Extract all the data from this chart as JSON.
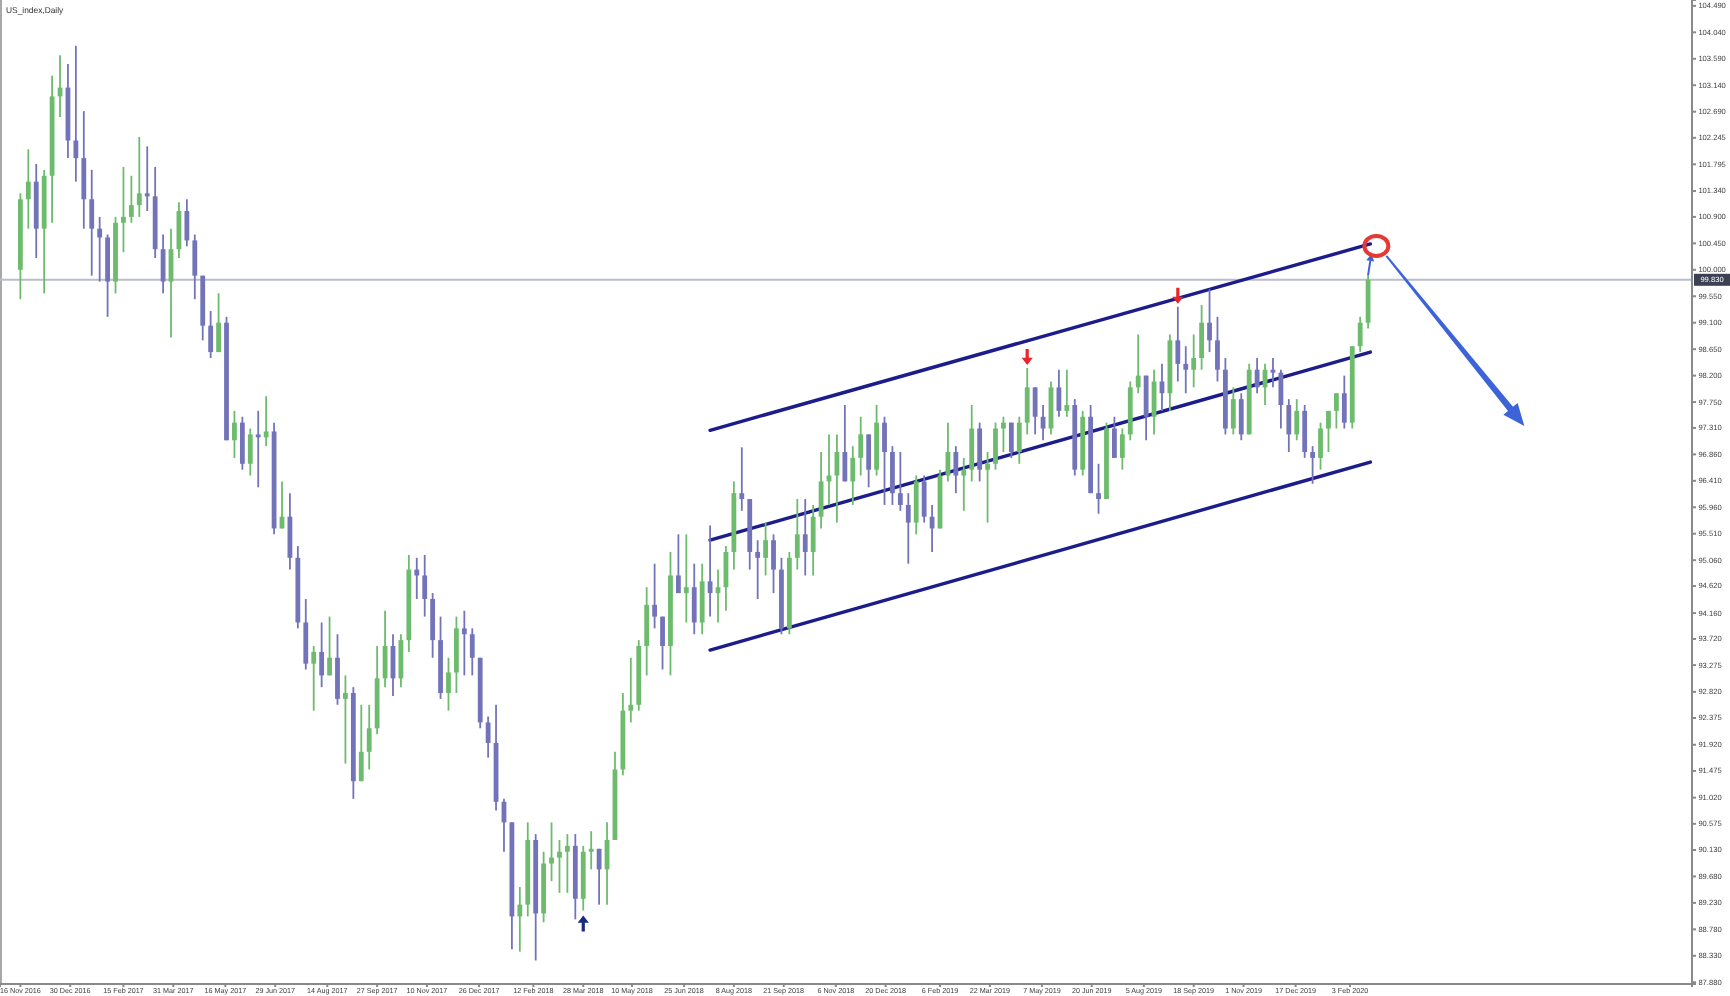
{
  "chart_data": {
    "type": "candlestick",
    "title": "US_index,Daily",
    "x": [
      "2016-11-16",
      "2016-11-23",
      "2016-11-30",
      "2016-12-07",
      "2016-12-14",
      "2016-12-21",
      "2016-12-28",
      "2017-01-04",
      "2017-01-11",
      "2017-01-18",
      "2017-01-25",
      "2017-02-01",
      "2017-02-08",
      "2017-02-15",
      "2017-02-22",
      "2017-03-01",
      "2017-03-08",
      "2017-03-15",
      "2017-03-22",
      "2017-03-29",
      "2017-04-05",
      "2017-04-12",
      "2017-04-19",
      "2017-04-26",
      "2017-05-03",
      "2017-05-10",
      "2017-05-17",
      "2017-05-24",
      "2017-05-31",
      "2017-06-07",
      "2017-06-14",
      "2017-06-21",
      "2017-06-28",
      "2017-07-05",
      "2017-07-12",
      "2017-07-19",
      "2017-07-26",
      "2017-08-02",
      "2017-08-09",
      "2017-08-16",
      "2017-08-23",
      "2017-08-30",
      "2017-09-06",
      "2017-09-13",
      "2017-09-20",
      "2017-09-27",
      "2017-10-04",
      "2017-10-11",
      "2017-10-18",
      "2017-10-25",
      "2017-11-01",
      "2017-11-08",
      "2017-11-15",
      "2017-11-22",
      "2017-11-29",
      "2017-12-06",
      "2017-12-13",
      "2017-12-20",
      "2017-12-27",
      "2018-01-03",
      "2018-01-10",
      "2018-01-17",
      "2018-01-24",
      "2018-01-31",
      "2018-02-07",
      "2018-02-14",
      "2018-02-21",
      "2018-02-28",
      "2018-03-07",
      "2018-03-14",
      "2018-03-21",
      "2018-03-28",
      "2018-04-04",
      "2018-04-11",
      "2018-04-18",
      "2018-04-25",
      "2018-05-02",
      "2018-05-09",
      "2018-05-16",
      "2018-05-23",
      "2018-05-30",
      "2018-06-06",
      "2018-06-13",
      "2018-06-20",
      "2018-06-27",
      "2018-07-04",
      "2018-07-11",
      "2018-07-18",
      "2018-07-25",
      "2018-08-01",
      "2018-08-08",
      "2018-08-15",
      "2018-08-22",
      "2018-08-29",
      "2018-09-05",
      "2018-09-12",
      "2018-09-19",
      "2018-09-26",
      "2018-10-03",
      "2018-10-10",
      "2018-10-17",
      "2018-10-24",
      "2018-10-31",
      "2018-11-07",
      "2018-11-14",
      "2018-11-21",
      "2018-11-28",
      "2018-12-05",
      "2018-12-12",
      "2018-12-19",
      "2018-12-26",
      "2019-01-02",
      "2019-01-09",
      "2019-01-16",
      "2019-01-23",
      "2019-01-30",
      "2019-02-06",
      "2019-02-13",
      "2019-02-20",
      "2019-02-27",
      "2019-03-06",
      "2019-03-13",
      "2019-03-20",
      "2019-03-27",
      "2019-04-03",
      "2019-04-10",
      "2019-04-17",
      "2019-04-24",
      "2019-05-01",
      "2019-05-08",
      "2019-05-15",
      "2019-05-22",
      "2019-05-29",
      "2019-06-05",
      "2019-06-12",
      "2019-06-19",
      "2019-06-26",
      "2019-07-03",
      "2019-07-10",
      "2019-07-17",
      "2019-07-24",
      "2019-07-31",
      "2019-08-07",
      "2019-08-14",
      "2019-08-21",
      "2019-08-28",
      "2019-09-04",
      "2019-09-11",
      "2019-09-18",
      "2019-09-25",
      "2019-10-02",
      "2019-10-09",
      "2019-10-16",
      "2019-10-23",
      "2019-10-30",
      "2019-11-06",
      "2019-11-13",
      "2019-11-20",
      "2019-11-27",
      "2019-12-04",
      "2019-12-11",
      "2019-12-18",
      "2019-12-25",
      "2020-01-01",
      "2020-01-08",
      "2020-01-15",
      "2020-01-22",
      "2020-01-29",
      "2020-02-05",
      "2020-02-12",
      "2020-02-19"
    ],
    "ohlc": [
      [
        100.0,
        101.3,
        99.5,
        101.2
      ],
      [
        101.2,
        102.05,
        100.7,
        101.5
      ],
      [
        101.5,
        101.8,
        100.2,
        100.7
      ],
      [
        100.7,
        101.7,
        99.6,
        101.6
      ],
      [
        101.6,
        103.3,
        100.8,
        102.95
      ],
      [
        102.95,
        103.65,
        102.6,
        103.1
      ],
      [
        103.1,
        103.5,
        101.9,
        102.2
      ],
      [
        102.2,
        103.81,
        101.5,
        101.9
      ],
      [
        101.9,
        102.7,
        100.7,
        101.2
      ],
      [
        101.2,
        101.7,
        99.9,
        100.7
      ],
      [
        100.7,
        100.9,
        99.8,
        100.55
      ],
      [
        100.55,
        100.6,
        99.2,
        99.8
      ],
      [
        99.8,
        100.9,
        99.6,
        100.8
      ],
      [
        100.8,
        101.75,
        100.3,
        100.9
      ],
      [
        100.9,
        101.6,
        100.8,
        101.1
      ],
      [
        101.1,
        102.26,
        100.9,
        101.3
      ],
      [
        101.3,
        102.1,
        101.0,
        101.25
      ],
      [
        101.25,
        101.75,
        100.2,
        100.35
      ],
      [
        100.35,
        100.6,
        99.6,
        99.8
      ],
      [
        99.8,
        100.7,
        98.85,
        100.35
      ],
      [
        100.35,
        101.15,
        100.2,
        101.0
      ],
      [
        101.0,
        101.2,
        100.4,
        100.5
      ],
      [
        100.5,
        100.6,
        99.5,
        99.9
      ],
      [
        99.9,
        99.9,
        98.8,
        99.05
      ],
      [
        99.05,
        99.3,
        98.5,
        98.6
      ],
      [
        98.6,
        99.6,
        98.6,
        99.1
      ],
      [
        99.1,
        99.2,
        97.1,
        97.1
      ],
      [
        97.1,
        97.6,
        96.8,
        97.4
      ],
      [
        97.4,
        97.5,
        96.6,
        96.7
      ],
      [
        96.7,
        97.3,
        96.5,
        97.2
      ],
      [
        97.2,
        97.6,
        96.3,
        97.15
      ],
      [
        97.15,
        97.85,
        97.0,
        97.25
      ],
      [
        97.25,
        97.4,
        95.5,
        95.6
      ],
      [
        95.6,
        96.4,
        95.6,
        95.8
      ],
      [
        95.8,
        96.2,
        94.9,
        95.1
      ],
      [
        95.1,
        95.3,
        93.9,
        94.0
      ],
      [
        94.0,
        94.4,
        93.2,
        93.3
      ],
      [
        93.3,
        93.6,
        92.5,
        93.5
      ],
      [
        93.5,
        94.0,
        92.9,
        93.1
      ],
      [
        93.1,
        94.1,
        93.1,
        93.4
      ],
      [
        93.4,
        93.8,
        92.6,
        92.7
      ],
      [
        92.7,
        93.1,
        91.6,
        92.8
      ],
      [
        92.8,
        92.9,
        91.0,
        91.3
      ],
      [
        91.3,
        92.6,
        91.3,
        91.8
      ],
      [
        91.8,
        92.6,
        91.5,
        92.2
      ],
      [
        92.2,
        93.6,
        92.1,
        93.05
      ],
      [
        93.05,
        94.2,
        92.9,
        93.6
      ],
      [
        93.6,
        93.8,
        92.75,
        93.05
      ],
      [
        93.05,
        93.8,
        92.9,
        93.7
      ],
      [
        93.7,
        95.15,
        93.5,
        94.9
      ],
      [
        94.9,
        95.1,
        94.4,
        94.8
      ],
      [
        94.8,
        95.15,
        94.1,
        94.4
      ],
      [
        94.4,
        94.5,
        93.4,
        93.7
      ],
      [
        93.7,
        94.1,
        92.7,
        92.8
      ],
      [
        92.8,
        93.4,
        92.5,
        93.15
      ],
      [
        93.15,
        94.1,
        92.8,
        93.9
      ],
      [
        93.9,
        94.2,
        93.1,
        93.8
      ],
      [
        93.8,
        93.9,
        93.1,
        93.4
      ],
      [
        93.4,
        93.4,
        92.2,
        92.3
      ],
      [
        92.3,
        92.4,
        91.7,
        91.95
      ],
      [
        91.95,
        92.6,
        90.8,
        90.95
      ],
      [
        90.95,
        91.0,
        90.1,
        90.6
      ],
      [
        90.6,
        90.6,
        88.44,
        89.0
      ],
      [
        89.0,
        89.5,
        88.4,
        89.2
      ],
      [
        89.2,
        90.6,
        89.0,
        90.3
      ],
      [
        90.3,
        90.4,
        88.25,
        89.05
      ],
      [
        89.05,
        90.1,
        88.9,
        89.9
      ],
      [
        89.9,
        90.6,
        89.6,
        90.0
      ],
      [
        90.0,
        90.3,
        89.4,
        90.1
      ],
      [
        90.1,
        90.4,
        89.4,
        90.2
      ],
      [
        90.2,
        90.4,
        88.95,
        89.3
      ],
      [
        89.3,
        90.2,
        89.1,
        90.1
      ],
      [
        90.1,
        90.45,
        89.8,
        90.15
      ],
      [
        90.15,
        90.15,
        89.2,
        89.8
      ],
      [
        89.8,
        90.6,
        89.2,
        90.3
      ],
      [
        90.3,
        91.8,
        90.3,
        91.5
      ],
      [
        91.5,
        92.8,
        91.4,
        92.5
      ],
      [
        92.5,
        93.4,
        92.3,
        92.6
      ],
      [
        92.6,
        93.7,
        92.5,
        93.6
      ],
      [
        93.6,
        94.6,
        93.1,
        94.3
      ],
      [
        94.3,
        95.0,
        93.9,
        94.1
      ],
      [
        94.1,
        94.1,
        93.2,
        93.6
      ],
      [
        93.6,
        95.2,
        93.1,
        94.8
      ],
      [
        94.8,
        95.5,
        94.5,
        94.5
      ],
      [
        94.5,
        95.5,
        94.0,
        94.6
      ],
      [
        94.6,
        95.0,
        93.8,
        94.0
      ],
      [
        94.0,
        95.0,
        93.8,
        94.7
      ],
      [
        94.7,
        95.65,
        94.1,
        94.5
      ],
      [
        94.5,
        94.9,
        94.0,
        94.6
      ],
      [
        94.6,
        95.3,
        94.2,
        95.2
      ],
      [
        95.2,
        96.4,
        94.9,
        96.2
      ],
      [
        96.2,
        96.98,
        95.9,
        96.1
      ],
      [
        96.1,
        96.1,
        94.9,
        95.2
      ],
      [
        95.2,
        95.4,
        94.4,
        95.1
      ],
      [
        95.1,
        95.7,
        94.8,
        95.4
      ],
      [
        95.4,
        95.5,
        94.5,
        94.9
      ],
      [
        94.9,
        95.1,
        93.8,
        93.9
      ],
      [
        93.9,
        95.2,
        93.8,
        95.1
      ],
      [
        95.1,
        96.1,
        94.9,
        95.5
      ],
      [
        95.5,
        96.1,
        94.8,
        95.2
      ],
      [
        95.2,
        96.0,
        94.8,
        95.8
      ],
      [
        95.8,
        96.9,
        95.6,
        96.4
      ],
      [
        96.4,
        97.2,
        96.0,
        96.5
      ],
      [
        96.5,
        97.2,
        95.7,
        96.9
      ],
      [
        96.9,
        97.7,
        96.4,
        96.4
      ],
      [
        96.4,
        97.0,
        96.0,
        96.8
      ],
      [
        96.8,
        97.5,
        96.5,
        97.2
      ],
      [
        97.2,
        97.2,
        96.3,
        96.6
      ],
      [
        96.6,
        97.7,
        96.5,
        97.4
      ],
      [
        97.4,
        97.5,
        96.0,
        96.9
      ],
      [
        96.9,
        97.0,
        96.0,
        96.2
      ],
      [
        96.2,
        96.9,
        95.9,
        96.0
      ],
      [
        96.0,
        96.2,
        95.0,
        95.7
      ],
      [
        95.7,
        96.5,
        95.5,
        96.4
      ],
      [
        96.4,
        96.5,
        95.7,
        95.8
      ],
      [
        95.8,
        96.0,
        95.2,
        95.6
      ],
      [
        95.6,
        96.6,
        95.6,
        96.5
      ],
      [
        96.5,
        97.4,
        96.4,
        96.9
      ],
      [
        96.9,
        97.0,
        96.2,
        96.5
      ],
      [
        96.5,
        96.8,
        95.9,
        96.6
      ],
      [
        96.6,
        97.7,
        96.4,
        97.3
      ],
      [
        97.3,
        97.4,
        96.4,
        96.6
      ],
      [
        96.6,
        96.9,
        95.7,
        96.7
      ],
      [
        96.7,
        97.4,
        96.6,
        97.3
      ],
      [
        97.3,
        97.5,
        96.9,
        97.4
      ],
      [
        97.4,
        97.4,
        96.8,
        96.9
      ],
      [
        96.9,
        97.5,
        96.7,
        97.4
      ],
      [
        97.4,
        98.33,
        97.2,
        98.0
      ],
      [
        98.0,
        98.0,
        97.2,
        97.5
      ],
      [
        97.5,
        97.7,
        97.1,
        97.3
      ],
      [
        97.3,
        98.1,
        97.2,
        98.0
      ],
      [
        98.0,
        98.3,
        97.5,
        97.6
      ],
      [
        97.6,
        98.3,
        97.5,
        97.7
      ],
      [
        97.7,
        97.8,
        96.5,
        96.6
      ],
      [
        96.6,
        97.6,
        96.5,
        97.5
      ],
      [
        97.5,
        97.7,
        96.2,
        96.2
      ],
      [
        96.2,
        96.7,
        95.85,
        96.1
      ],
      [
        96.1,
        97.4,
        96.1,
        97.3
      ],
      [
        97.3,
        97.5,
        96.8,
        96.8
      ],
      [
        96.8,
        97.3,
        96.6,
        97.2
      ],
      [
        97.2,
        98.1,
        97.1,
        98.0
      ],
      [
        98.0,
        98.9,
        97.9,
        98.2
      ],
      [
        98.2,
        98.2,
        97.1,
        97.5
      ],
      [
        97.5,
        98.3,
        97.2,
        98.1
      ],
      [
        98.1,
        98.4,
        97.6,
        97.9
      ],
      [
        97.9,
        98.9,
        97.6,
        98.8
      ],
      [
        98.8,
        99.37,
        98.1,
        98.4
      ],
      [
        98.4,
        98.7,
        97.9,
        98.3
      ],
      [
        98.3,
        98.9,
        98.0,
        98.5
      ],
      [
        98.5,
        99.4,
        98.3,
        99.1
      ],
      [
        99.1,
        99.67,
        98.6,
        98.8
      ],
      [
        98.8,
        99.2,
        98.1,
        98.3
      ],
      [
        98.3,
        98.5,
        97.2,
        97.3
      ],
      [
        97.3,
        98.0,
        97.2,
        97.8
      ],
      [
        97.8,
        97.9,
        97.1,
        97.2
      ],
      [
        97.2,
        98.4,
        97.2,
        98.3
      ],
      [
        98.3,
        98.5,
        97.9,
        98.0
      ],
      [
        98.0,
        98.4,
        97.7,
        98.3
      ],
      [
        98.3,
        98.5,
        98.0,
        98.25
      ],
      [
        98.25,
        98.3,
        97.3,
        97.7
      ],
      [
        97.7,
        97.8,
        96.9,
        97.2
      ],
      [
        97.2,
        97.8,
        97.1,
        97.6
      ],
      [
        97.6,
        97.7,
        96.8,
        96.9
      ],
      [
        96.9,
        97.0,
        96.36,
        96.8
      ],
      [
        96.8,
        97.4,
        96.6,
        97.3
      ],
      [
        97.3,
        97.6,
        96.9,
        97.6
      ],
      [
        97.6,
        97.9,
        97.3,
        97.9
      ],
      [
        97.9,
        98.2,
        97.3,
        97.4
      ],
      [
        97.4,
        98.7,
        97.3,
        98.7
      ],
      [
        98.7,
        99.2,
        98.6,
        99.1
      ],
      [
        99.1,
        99.91,
        99.0,
        99.83
      ]
    ],
    "colors": [
      "#6dbb6d",
      "#6dbb6d",
      "#7373b9",
      "#6dbb6d",
      "#6dbb6d",
      "#6dbb6d",
      "#7373b9",
      "#7373b9",
      "#7373b9",
      "#7373b9",
      "#7373b9",
      "#7373b9",
      "#6dbb6d",
      "#6dbb6d",
      "#6dbb6d",
      "#6dbb6d",
      "#7373b9",
      "#7373b9",
      "#7373b9",
      "#6dbb6d",
      "#6dbb6d",
      "#7373b9",
      "#7373b9",
      "#7373b9",
      "#7373b9",
      "#6dbb6d",
      "#7373b9",
      "#6dbb6d",
      "#7373b9",
      "#6dbb6d",
      "#7373b9",
      "#6dbb6d",
      "#7373b9",
      "#6dbb6d",
      "#7373b9",
      "#7373b9",
      "#7373b9",
      "#6dbb6d",
      "#7373b9",
      "#6dbb6d",
      "#7373b9",
      "#6dbb6d",
      "#7373b9",
      "#6dbb6d",
      "#6dbb6d",
      "#6dbb6d",
      "#6dbb6d",
      "#7373b9",
      "#6dbb6d",
      "#6dbb6d",
      "#7373b9",
      "#7373b9",
      "#7373b9",
      "#7373b9",
      "#6dbb6d",
      "#6dbb6d",
      "#7373b9",
      "#7373b9",
      "#7373b9",
      "#7373b9",
      "#7373b9",
      "#7373b9",
      "#7373b9",
      "#6dbb6d",
      "#6dbb6d",
      "#7373b9",
      "#6dbb6d",
      "#6dbb6d",
      "#6dbb6d",
      "#6dbb6d",
      "#7373b9",
      "#6dbb6d",
      "#6dbb6d",
      "#7373b9",
      "#6dbb6d",
      "#6dbb6d",
      "#6dbb6d",
      "#6dbb6d",
      "#6dbb6d",
      "#6dbb6d",
      "#7373b9",
      "#7373b9",
      "#6dbb6d",
      "#7373b9",
      "#6dbb6d",
      "#7373b9",
      "#6dbb6d",
      "#7373b9",
      "#6dbb6d",
      "#6dbb6d",
      "#6dbb6d",
      "#7373b9",
      "#7373b9",
      "#7373b9",
      "#6dbb6d",
      "#7373b9",
      "#7373b9",
      "#6dbb6d",
      "#6dbb6d",
      "#7373b9",
      "#6dbb6d",
      "#6dbb6d",
      "#6dbb6d",
      "#6dbb6d",
      "#7373b9",
      "#6dbb6d",
      "#6dbb6d",
      "#7373b9",
      "#6dbb6d",
      "#7373b9",
      "#7373b9",
      "#7373b9",
      "#7373b9",
      "#6dbb6d",
      "#7373b9",
      "#7373b9",
      "#6dbb6d",
      "#6dbb6d",
      "#7373b9",
      "#6dbb6d",
      "#6dbb6d",
      "#7373b9",
      "#6dbb6d",
      "#6dbb6d",
      "#6dbb6d",
      "#7373b9",
      "#6dbb6d",
      "#6dbb6d",
      "#7373b9",
      "#7373b9",
      "#6dbb6d",
      "#7373b9",
      "#6dbb6d",
      "#7373b9",
      "#6dbb6d",
      "#7373b9",
      "#7373b9",
      "#6dbb6d",
      "#7373b9",
      "#6dbb6d",
      "#6dbb6d",
      "#6dbb6d",
      "#7373b9",
      "#6dbb6d",
      "#7373b9",
      "#6dbb6d",
      "#7373b9",
      "#7373b9",
      "#6dbb6d",
      "#6dbb6d",
      "#7373b9",
      "#7373b9",
      "#7373b9",
      "#6dbb6d",
      "#7373b9",
      "#6dbb6d",
      "#7373b9",
      "#6dbb6d",
      "#7373b9",
      "#7373b9",
      "#7373b9",
      "#6dbb6d",
      "#7373b9",
      "#7373b9",
      "#6dbb6d",
      "#6dbb6d",
      "#6dbb6d",
      "#7373b9",
      "#6dbb6d",
      "#6dbb6d",
      "#6dbb6d"
    ],
    "series": [
      {
        "type": "line",
        "color": "#1c1c8a",
        "x": [
          "2018-07-18",
          "2020-02-21"
        ],
        "values": [
          97.27,
          100.44
        ]
      },
      {
        "type": "line",
        "color": "#1c1c8a",
        "x": [
          "2018-07-18",
          "2020-02-21"
        ],
        "values": [
          95.4,
          98.6
        ]
      },
      {
        "type": "line",
        "color": "#1c1c8a",
        "x": [
          "2018-07-18",
          "2020-02-21"
        ],
        "values": [
          93.53,
          96.73
        ]
      }
    ],
    "ref_lines": [
      {
        "axis": "y",
        "value": 99.83,
        "label": "99.830",
        "color": "#b9bdcc"
      }
    ],
    "xlim": [
      "2016-10-29",
      "2020-12-01"
    ],
    "ylim": [
      87.85,
      104.59
    ],
    "xticks": [
      {
        "value": "2016-11-16",
        "label": "16 Nov 2016"
      },
      {
        "value": "2016-12-30",
        "label": "30 Dec 2016"
      },
      {
        "value": "2017-02-15",
        "label": "15 Feb 2017"
      },
      {
        "value": "2017-03-31",
        "label": "31 Mar 2017"
      },
      {
        "value": "2017-05-16",
        "label": "16 May 2017"
      },
      {
        "value": "2017-06-29",
        "label": "29 Jun 2017"
      },
      {
        "value": "2017-08-14",
        "label": "14 Aug 2017"
      },
      {
        "value": "2017-09-27",
        "label": "27 Sep 2017"
      },
      {
        "value": "2017-11-10",
        "label": "10 Nov 2017"
      },
      {
        "value": "2017-12-26",
        "label": "26 Dec 2017"
      },
      {
        "value": "2018-02-12",
        "label": "12 Feb 2018"
      },
      {
        "value": "2018-03-28",
        "label": "28 Mar 2018"
      },
      {
        "value": "2018-05-10",
        "label": "10 May 2018"
      },
      {
        "value": "2018-06-25",
        "label": "25 Jun 2018"
      },
      {
        "value": "2018-08-08",
        "label": "8 Aug 2018"
      },
      {
        "value": "2018-09-21",
        "label": "21 Sep 2018"
      },
      {
        "value": "2018-11-06",
        "label": "6 Nov 2018"
      },
      {
        "value": "2018-12-20",
        "label": "20 Dec 2018"
      },
      {
        "value": "2019-02-06",
        "label": "6 Feb 2019"
      },
      {
        "value": "2019-03-22",
        "label": "22 Mar 2019"
      },
      {
        "value": "2019-05-07",
        "label": "7 May 2019"
      },
      {
        "value": "2019-06-20",
        "label": "20 Jun 2019"
      },
      {
        "value": "2019-08-05",
        "label": "5 Aug 2019"
      },
      {
        "value": "2019-09-18",
        "label": "18 Sep 2019"
      },
      {
        "value": "2019-11-01",
        "label": "1 Nov 2019"
      },
      {
        "value": "2019-12-17",
        "label": "17 Dec 2019"
      },
      {
        "value": "2020-02-03",
        "label": "3 Feb 2020"
      }
    ],
    "yticks": [
      {
        "value": 104.49,
        "label": "104.490"
      },
      {
        "value": 104.04,
        "label": "104.040"
      },
      {
        "value": 103.59,
        "label": "103.590"
      },
      {
        "value": 103.14,
        "label": "103.140"
      },
      {
        "value": 102.69,
        "label": "102.690"
      },
      {
        "value": 102.245,
        "label": "102.245"
      },
      {
        "value": 101.795,
        "label": "101.795"
      },
      {
        "value": 101.34,
        "label": "101.340"
      },
      {
        "value": 100.9,
        "label": "100.900"
      },
      {
        "value": 100.45,
        "label": "100.450"
      },
      {
        "value": 100.0,
        "label": "100.000"
      },
      {
        "value": 99.55,
        "label": "99.550"
      },
      {
        "value": 99.1,
        "label": "99.100"
      },
      {
        "value": 98.65,
        "label": "98.650"
      },
      {
        "value": 98.2,
        "label": "98.200"
      },
      {
        "value": 97.75,
        "label": "97.750"
      },
      {
        "value": 97.31,
        "label": "97.310"
      },
      {
        "value": 96.86,
        "label": "96.860"
      },
      {
        "value": 96.41,
        "label": "96.410"
      },
      {
        "value": 95.96,
        "label": "95.960"
      },
      {
        "value": 95.51,
        "label": "95.510"
      },
      {
        "value": 95.06,
        "label": "95.060"
      },
      {
        "value": 94.62,
        "label": "94.620"
      },
      {
        "value": 94.16,
        "label": "94.160"
      },
      {
        "value": 93.72,
        "label": "93.720"
      },
      {
        "value": 93.275,
        "label": "93.275"
      },
      {
        "value": 92.82,
        "label": "92.820"
      },
      {
        "value": 92.375,
        "label": "92.375"
      },
      {
        "value": 91.92,
        "label": "91.920"
      },
      {
        "value": 91.475,
        "label": "91.475"
      },
      {
        "value": 91.02,
        "label": "91.020"
      },
      {
        "value": 90.575,
        "label": "90.575"
      },
      {
        "value": 90.13,
        "label": "90.130"
      },
      {
        "value": 89.68,
        "label": "89.680"
      },
      {
        "value": 89.23,
        "label": "89.230"
      },
      {
        "value": 88.78,
        "label": "88.780"
      },
      {
        "value": 88.33,
        "label": "88.330"
      },
      {
        "value": 87.88,
        "label": "87.880"
      }
    ]
  }
}
